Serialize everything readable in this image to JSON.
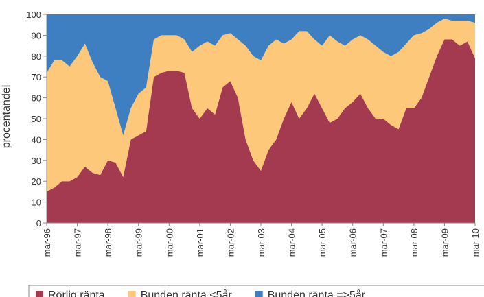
{
  "chart_data": {
    "type": "stacked-area",
    "y_label": "procentandel",
    "categories": [
      "mar-96",
      null,
      null,
      null,
      "mar-97",
      null,
      null,
      null,
      "mar-98",
      null,
      null,
      null,
      "mar-99",
      null,
      null,
      null,
      "mar-00",
      null,
      null,
      null,
      "mar-01",
      null,
      null,
      null,
      "mar-02",
      null,
      null,
      null,
      "mar-03",
      null,
      null,
      null,
      "mar-04",
      null,
      null,
      null,
      "mar-05",
      null,
      null,
      null,
      "mar-06",
      null,
      null,
      null,
      "mar-07",
      null,
      null,
      null,
      "mar-08",
      null,
      null,
      null,
      "mar-09",
      null,
      null,
      null,
      "mar-10"
    ],
    "series": [
      {
        "name": "Rörlig ränta",
        "color": "#a33a50",
        "values": [
          15,
          17,
          20,
          20,
          22,
          27,
          24,
          23,
          30,
          29,
          22,
          40,
          42,
          44,
          70,
          72,
          73,
          73,
          72,
          55,
          50,
          55,
          52,
          65,
          68,
          60,
          40,
          30,
          25,
          35,
          40,
          50,
          58,
          50,
          55,
          62,
          55,
          48,
          50,
          55,
          58,
          62,
          55,
          50,
          50,
          47,
          45,
          55,
          55,
          60,
          70,
          80,
          88,
          88,
          85,
          87,
          79
        ]
      },
      {
        "name": "Bunden ränta <5år",
        "color": "#fdc87a",
        "values": [
          57,
          61,
          58,
          55,
          58,
          59,
          53,
          47,
          38,
          26,
          20,
          15,
          20,
          21,
          18,
          18,
          17,
          17,
          16,
          27,
          35,
          32,
          33,
          25,
          23,
          28,
          45,
          50,
          53,
          50,
          48,
          36,
          30,
          42,
          37,
          26,
          30,
          42,
          37,
          30,
          30,
          28,
          33,
          35,
          32,
          33,
          37,
          31,
          35,
          31,
          23,
          16,
          10,
          9,
          12,
          10,
          17
        ]
      },
      {
        "name": "Bunden ränta =>5år",
        "color": "#3d7fc1",
        "values": [
          28,
          22,
          22,
          25,
          20,
          14,
          23,
          30,
          32,
          45,
          58,
          45,
          38,
          35,
          12,
          10,
          10,
          10,
          12,
          18,
          15,
          13,
          15,
          10,
          9,
          12,
          15,
          20,
          22,
          15,
          12,
          14,
          12,
          8,
          8,
          12,
          15,
          10,
          13,
          15,
          12,
          10,
          12,
          15,
          18,
          20,
          18,
          14,
          10,
          9,
          7,
          4,
          2,
          3,
          3,
          3,
          4
        ]
      }
    ],
    "ylim": [
      0,
      100
    ],
    "yticks": [
      0,
      10,
      20,
      30,
      40,
      50,
      60,
      70,
      80,
      90,
      100
    ],
    "grid": false
  }
}
